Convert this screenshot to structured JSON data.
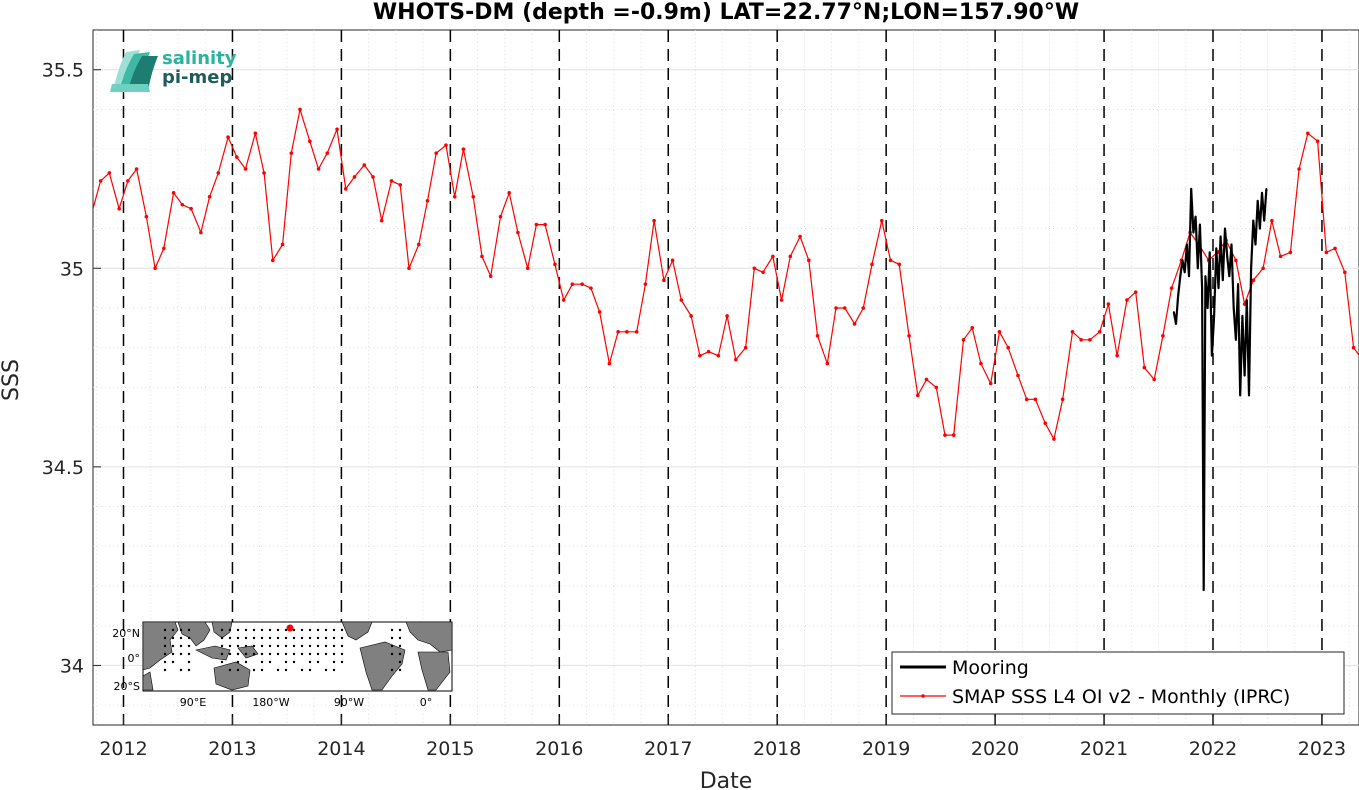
{
  "chart_data": {
    "type": "line",
    "title": "WHOTS-DM (depth =-0.9m) LAT=22.77°N;LON=157.90°W",
    "xlabel": "Date",
    "ylabel": "SSS",
    "xlim": [
      2011.72,
      2023.34
    ],
    "ylim": [
      33.85,
      35.6
    ],
    "x_ticks": [
      2012,
      2013,
      2014,
      2015,
      2016,
      2017,
      2018,
      2019,
      2020,
      2021,
      2022,
      2023
    ],
    "x_tick_labels": [
      "2012",
      "2013",
      "2014",
      "2015",
      "2016",
      "2017",
      "2018",
      "2019",
      "2020",
      "2021",
      "2022",
      "2023"
    ],
    "y_ticks": [
      34,
      34.5,
      35,
      35.5
    ],
    "y_tick_labels": [
      "34",
      "34.5",
      "35",
      "35.5"
    ],
    "grid": true,
    "year_dividers": "dashed vertical lines at each January 1",
    "legend_position": "bottom-right",
    "series": [
      {
        "name": "Mooring",
        "color": "#000000",
        "style": "solid thick line",
        "points": [
          [
            2021.64,
            34.89
          ],
          [
            2021.66,
            34.86
          ],
          [
            2021.68,
            34.93
          ],
          [
            2021.7,
            34.98
          ],
          [
            2021.72,
            35.02
          ],
          [
            2021.74,
            34.99
          ],
          [
            2021.76,
            35.06
          ],
          [
            2021.78,
            34.98
          ],
          [
            2021.8,
            35.2
          ],
          [
            2021.82,
            35.09
          ],
          [
            2021.84,
            35.13
          ],
          [
            2021.86,
            35.0
          ],
          [
            2021.88,
            35.11
          ],
          [
            2021.9,
            34.95
          ],
          [
            2021.915,
            34.19
          ],
          [
            2021.93,
            34.98
          ],
          [
            2021.95,
            34.9
          ],
          [
            2021.97,
            35.04
          ],
          [
            2021.99,
            34.78
          ],
          [
            2022.01,
            34.88
          ],
          [
            2022.03,
            35.05
          ],
          [
            2022.05,
            34.95
          ],
          [
            2022.07,
            35.08
          ],
          [
            2022.09,
            34.97
          ],
          [
            2022.11,
            35.1
          ],
          [
            2022.13,
            35.03
          ],
          [
            2022.15,
            34.98
          ],
          [
            2022.17,
            35.06
          ],
          [
            2022.19,
            34.9
          ],
          [
            2022.21,
            34.82
          ],
          [
            2022.23,
            34.96
          ],
          [
            2022.25,
            34.68
          ],
          [
            2022.27,
            34.88
          ],
          [
            2022.29,
            34.73
          ],
          [
            2022.31,
            34.92
          ],
          [
            2022.33,
            34.68
          ],
          [
            2022.35,
            35.0
          ],
          [
            2022.37,
            35.12
          ],
          [
            2022.39,
            35.06
          ],
          [
            2022.41,
            35.17
          ],
          [
            2022.43,
            35.1
          ],
          [
            2022.45,
            35.19
          ],
          [
            2022.47,
            35.12
          ],
          [
            2022.49,
            35.2
          ]
        ]
      },
      {
        "name": "SMAP SSS L4 OI v2 - Monthly (IPRC)",
        "color": "#ff0000",
        "style": "thin line with dot markers",
        "points": [
          [
            2011.71,
            35.14
          ],
          [
            2011.79,
            35.22
          ],
          [
            2011.87,
            35.24
          ],
          [
            2011.96,
            35.15
          ],
          [
            2012.04,
            35.22
          ],
          [
            2012.12,
            35.25
          ],
          [
            2012.21,
            35.13
          ],
          [
            2012.29,
            35.0
          ],
          [
            2012.37,
            35.05
          ],
          [
            2012.46,
            35.19
          ],
          [
            2012.54,
            35.16
          ],
          [
            2012.62,
            35.15
          ],
          [
            2012.71,
            35.09
          ],
          [
            2012.79,
            35.18
          ],
          [
            2012.87,
            35.24
          ],
          [
            2012.96,
            35.33
          ],
          [
            2013.04,
            35.28
          ],
          [
            2013.12,
            35.25
          ],
          [
            2013.21,
            35.34
          ],
          [
            2013.29,
            35.24
          ],
          [
            2013.37,
            35.02
          ],
          [
            2013.46,
            35.06
          ],
          [
            2013.54,
            35.29
          ],
          [
            2013.62,
            35.4
          ],
          [
            2013.71,
            35.32
          ],
          [
            2013.79,
            35.25
          ],
          [
            2013.87,
            35.29
          ],
          [
            2013.96,
            35.35
          ],
          [
            2014.04,
            35.2
          ],
          [
            2014.12,
            35.23
          ],
          [
            2014.21,
            35.26
          ],
          [
            2014.29,
            35.23
          ],
          [
            2014.37,
            35.12
          ],
          [
            2014.46,
            35.22
          ],
          [
            2014.54,
            35.21
          ],
          [
            2014.62,
            35.0
          ],
          [
            2014.71,
            35.06
          ],
          [
            2014.79,
            35.17
          ],
          [
            2014.87,
            35.29
          ],
          [
            2014.96,
            35.31
          ],
          [
            2015.04,
            35.18
          ],
          [
            2015.12,
            35.3
          ],
          [
            2015.21,
            35.18
          ],
          [
            2015.29,
            35.03
          ],
          [
            2015.37,
            34.98
          ],
          [
            2015.46,
            35.13
          ],
          [
            2015.54,
            35.19
          ],
          [
            2015.62,
            35.09
          ],
          [
            2015.71,
            35.0
          ],
          [
            2015.79,
            35.11
          ],
          [
            2015.87,
            35.11
          ],
          [
            2015.96,
            35.01
          ],
          [
            2016.04,
            34.92
          ],
          [
            2016.12,
            34.96
          ],
          [
            2016.21,
            34.96
          ],
          [
            2016.29,
            34.95
          ],
          [
            2016.37,
            34.89
          ],
          [
            2016.46,
            34.76
          ],
          [
            2016.54,
            34.84
          ],
          [
            2016.62,
            34.84
          ],
          [
            2016.71,
            34.84
          ],
          [
            2016.79,
            34.96
          ],
          [
            2016.87,
            35.12
          ],
          [
            2016.96,
            34.97
          ],
          [
            2017.04,
            35.02
          ],
          [
            2017.12,
            34.92
          ],
          [
            2017.21,
            34.88
          ],
          [
            2017.29,
            34.78
          ],
          [
            2017.37,
            34.79
          ],
          [
            2017.46,
            34.78
          ],
          [
            2017.54,
            34.88
          ],
          [
            2017.62,
            34.77
          ],
          [
            2017.71,
            34.8
          ],
          [
            2017.79,
            35.0
          ],
          [
            2017.87,
            34.99
          ],
          [
            2017.96,
            35.03
          ],
          [
            2018.04,
            34.92
          ],
          [
            2018.12,
            35.03
          ],
          [
            2018.21,
            35.08
          ],
          [
            2018.29,
            35.02
          ],
          [
            2018.37,
            34.83
          ],
          [
            2018.46,
            34.76
          ],
          [
            2018.54,
            34.9
          ],
          [
            2018.62,
            34.9
          ],
          [
            2018.71,
            34.86
          ],
          [
            2018.79,
            34.9
          ],
          [
            2018.87,
            35.01
          ],
          [
            2018.96,
            35.12
          ],
          [
            2019.04,
            35.02
          ],
          [
            2019.12,
            35.01
          ],
          [
            2019.21,
            34.83
          ],
          [
            2019.29,
            34.68
          ],
          [
            2019.37,
            34.72
          ],
          [
            2019.46,
            34.7
          ],
          [
            2019.54,
            34.58
          ],
          [
            2019.62,
            34.58
          ],
          [
            2019.71,
            34.82
          ],
          [
            2019.79,
            34.85
          ],
          [
            2019.87,
            34.76
          ],
          [
            2019.96,
            34.71
          ],
          [
            2020.04,
            34.84
          ],
          [
            2020.12,
            34.8
          ],
          [
            2020.21,
            34.73
          ],
          [
            2020.29,
            34.67
          ],
          [
            2020.37,
            34.67
          ],
          [
            2020.46,
            34.61
          ],
          [
            2020.54,
            34.57
          ],
          [
            2020.62,
            34.67
          ],
          [
            2020.71,
            34.84
          ],
          [
            2020.79,
            34.82
          ],
          [
            2020.87,
            34.82
          ],
          [
            2020.96,
            34.84
          ],
          [
            2021.04,
            34.91
          ],
          [
            2021.12,
            34.78
          ],
          [
            2021.21,
            34.92
          ],
          [
            2021.29,
            34.94
          ],
          [
            2021.37,
            34.75
          ],
          [
            2021.46,
            34.72
          ],
          [
            2021.54,
            34.83
          ],
          [
            2021.62,
            34.95
          ],
          [
            2021.71,
            35.02
          ],
          [
            2021.79,
            35.09
          ],
          [
            2021.87,
            35.06
          ],
          [
            2021.96,
            35.02
          ],
          [
            2022.04,
            35.04
          ],
          [
            2022.12,
            35.07
          ],
          [
            2022.21,
            35.02
          ],
          [
            2022.29,
            34.91
          ],
          [
            2022.37,
            34.97
          ],
          [
            2022.46,
            35.0
          ],
          [
            2022.54,
            35.12
          ],
          [
            2022.62,
            35.03
          ],
          [
            2022.71,
            35.04
          ],
          [
            2022.79,
            35.25
          ],
          [
            2022.87,
            35.34
          ],
          [
            2022.96,
            35.32
          ],
          [
            2023.04,
            35.04
          ],
          [
            2023.12,
            35.05
          ],
          [
            2023.21,
            34.99
          ],
          [
            2023.29,
            34.8
          ],
          [
            2023.37,
            34.77
          ]
        ]
      }
    ]
  },
  "logo": {
    "line1": "salinity",
    "line2": "pi-mep",
    "line1_color": "#2bb3a0",
    "line2_color": "#1f5c5a"
  },
  "inset_map": {
    "lat_labels": [
      "20°N",
      "0°",
      "20°S"
    ],
    "lon_labels": [
      "90°E",
      "180°W",
      "90°W",
      "0°"
    ],
    "land_color": "#808080",
    "ocean_color": "#ffffff",
    "station_color": "#000000",
    "highlight_color": "#ff0000"
  }
}
